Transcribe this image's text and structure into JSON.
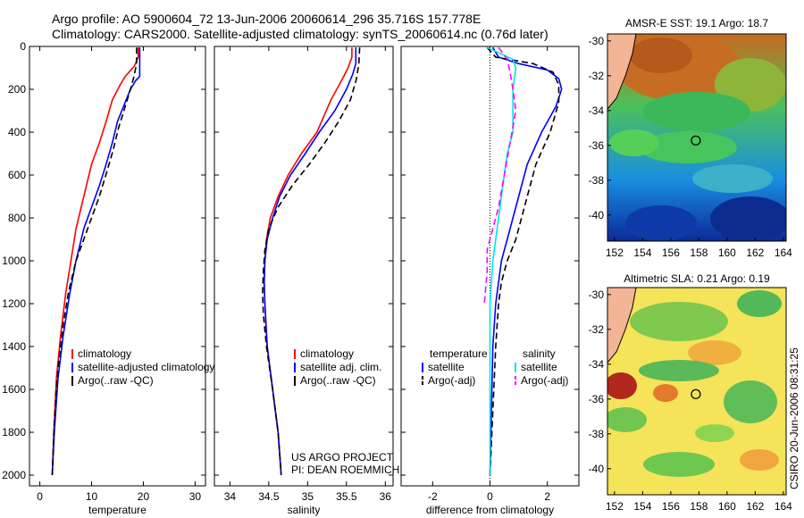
{
  "title_lines": [
    "Argo profile: AO 5900604_72 13-Jun-2006 20060614_296 35.716S 157.778E",
    "Climatology: CARS2000. Satellite-adjusted climatology: synTS_20060614.nc (0.76d later)"
  ],
  "side_label": "CSIRO 20-Jun-2006 08:31:25",
  "project_text": [
    "US ARGO PROJECT",
    "PI: DEAN ROEMMICH"
  ],
  "maps": [
    {
      "title": "AMSR-E SST: 19.1 Argo: 18.7",
      "xticks": [
        "152",
        "154",
        "156",
        "158",
        "160",
        "162",
        "164"
      ],
      "yticks": [
        "-30",
        "-32",
        "-34",
        "-36",
        "-38",
        "-40"
      ],
      "marker": {
        "lon": 157.78,
        "lat": -35.72
      }
    },
    {
      "title": "Altimetric SLA: 0.21 Argo: 0.19",
      "xticks": [
        "152",
        "154",
        "156",
        "158",
        "160",
        "162",
        "164"
      ],
      "yticks": [
        "-30",
        "-32",
        "-34",
        "-36",
        "-38",
        "-40"
      ],
      "marker": {
        "lon": 157.78,
        "lat": -35.72
      }
    }
  ],
  "chart_data": [
    {
      "type": "line",
      "xlabel": "temperature",
      "ylabel": "",
      "xlim": [
        -2,
        32
      ],
      "ylim": [
        0,
        2050
      ],
      "y_reversed": true,
      "xticks": [
        0,
        10,
        20,
        30
      ],
      "yticks": [
        0,
        200,
        400,
        600,
        800,
        1000,
        1200,
        1400,
        1600,
        1800,
        2000
      ],
      "legend": {
        "position": "lower-right",
        "entries": [
          "climatology",
          "satellite-adjusted climatology",
          "Argo(..raw -QC)"
        ]
      },
      "series": [
        {
          "name": "climatology",
          "color": "#ff0000",
          "dash": "solid",
          "points": [
            [
              19.0,
              5
            ],
            [
              19.0,
              50
            ],
            [
              18.3,
              90
            ],
            [
              16.5,
              140
            ],
            [
              15.5,
              180
            ],
            [
              14.0,
              250
            ],
            [
              12.8,
              350
            ],
            [
              11.5,
              450
            ],
            [
              10.0,
              550
            ],
            [
              9.0,
              650
            ],
            [
              8.0,
              750
            ],
            [
              7.0,
              850
            ],
            [
              6.0,
              1000
            ],
            [
              5.0,
              1150
            ],
            [
              4.0,
              1350
            ],
            [
              3.2,
              1550
            ],
            [
              2.7,
              1800
            ],
            [
              2.4,
              2000
            ]
          ]
        },
        {
          "name": "satellite-adjusted climatology",
          "color": "#0000ff",
          "dash": "solid",
          "points": [
            [
              19.3,
              5
            ],
            [
              19.3,
              140
            ],
            [
              18.5,
              160
            ],
            [
              17.5,
              200
            ],
            [
              16.5,
              260
            ],
            [
              15.0,
              350
            ],
            [
              14.0,
              450
            ],
            [
              12.8,
              550
            ],
            [
              11.5,
              650
            ],
            [
              10.0,
              750
            ],
            [
              8.5,
              850
            ],
            [
              7.0,
              1000
            ],
            [
              5.8,
              1150
            ],
            [
              4.5,
              1350
            ],
            [
              3.5,
              1550
            ],
            [
              2.8,
              1800
            ],
            [
              2.4,
              2000
            ]
          ]
        },
        {
          "name": "Argo(..raw -QC)",
          "color": "#000000",
          "dash": "dashed",
          "points": [
            [
              18.7,
              5
            ],
            [
              18.7,
              80
            ],
            [
              18.2,
              140
            ],
            [
              17.5,
              200
            ],
            [
              16.5,
              280
            ],
            [
              15.2,
              380
            ],
            [
              14.2,
              480
            ],
            [
              13.0,
              580
            ],
            [
              11.5,
              700
            ],
            [
              10.0,
              800
            ],
            [
              8.5,
              900
            ],
            [
              7.0,
              1000
            ],
            [
              5.5,
              1150
            ],
            [
              4.5,
              1300
            ],
            [
              3.5,
              1500
            ],
            [
              2.8,
              1750
            ],
            [
              2.4,
              2000
            ]
          ]
        }
      ]
    },
    {
      "type": "line",
      "xlabel": "salinity",
      "ylabel": "",
      "xlim": [
        33.8,
        36.1
      ],
      "ylim": [
        0,
        2050
      ],
      "y_reversed": true,
      "xticks": [
        34,
        34.5,
        35,
        35.5,
        36
      ],
      "legend": {
        "position": "lower-right",
        "entries": [
          "climatology",
          "satellite adj. clim.",
          "Argo(..raw -QC)"
        ]
      },
      "series": [
        {
          "name": "climatology",
          "color": "#ff0000",
          "dash": "solid",
          "points": [
            [
              35.57,
              5
            ],
            [
              35.57,
              50
            ],
            [
              35.52,
              100
            ],
            [
              35.45,
              150
            ],
            [
              35.3,
              250
            ],
            [
              35.12,
              400
            ],
            [
              34.92,
              500
            ],
            [
              34.75,
              600
            ],
            [
              34.62,
              700
            ],
            [
              34.52,
              800
            ],
            [
              34.47,
              900
            ],
            [
              34.45,
              1000
            ],
            [
              34.44,
              1100
            ],
            [
              34.45,
              1200
            ],
            [
              34.48,
              1400
            ],
            [
              34.55,
              1600
            ],
            [
              34.62,
              1800
            ],
            [
              34.66,
              2000
            ]
          ]
        },
        {
          "name": "satellite adj. clim.",
          "color": "#0000ff",
          "dash": "solid",
          "points": [
            [
              35.62,
              5
            ],
            [
              35.62,
              80
            ],
            [
              35.58,
              130
            ],
            [
              35.5,
              200
            ],
            [
              35.35,
              300
            ],
            [
              35.15,
              400
            ],
            [
              34.97,
              500
            ],
            [
              34.78,
              600
            ],
            [
              34.64,
              700
            ],
            [
              34.55,
              800
            ],
            [
              34.48,
              900
            ],
            [
              34.45,
              1000
            ],
            [
              34.44,
              1100
            ],
            [
              34.45,
              1200
            ],
            [
              34.48,
              1400
            ],
            [
              34.55,
              1600
            ],
            [
              34.62,
              1800
            ],
            [
              34.66,
              2000
            ]
          ]
        },
        {
          "name": "Argo(..raw -QC)",
          "color": "#000000",
          "dash": "dashed",
          "points": [
            [
              35.67,
              5
            ],
            [
              35.66,
              80
            ],
            [
              35.63,
              150
            ],
            [
              35.55,
              250
            ],
            [
              35.4,
              350
            ],
            [
              35.22,
              450
            ],
            [
              35.02,
              550
            ],
            [
              34.8,
              650
            ],
            [
              34.62,
              750
            ],
            [
              34.5,
              850
            ],
            [
              34.45,
              950
            ],
            [
              34.43,
              1050
            ],
            [
              34.42,
              1150
            ],
            [
              34.43,
              1250
            ],
            [
              34.47,
              1400
            ],
            [
              34.55,
              1600
            ],
            [
              34.62,
              1800
            ],
            [
              34.66,
              2000
            ]
          ]
        }
      ]
    },
    {
      "type": "line",
      "xlabel": "difference from climatology",
      "ylabel": "",
      "xlim": [
        -3.1,
        3.1
      ],
      "ylim": [
        0,
        2050
      ],
      "y_reversed": true,
      "xticks": [
        -2,
        0,
        2
      ],
      "zero_line": true,
      "legend": {
        "position": "lower-center",
        "headers": [
          "temperature",
          "salinity"
        ],
        "entries": [
          "satellite",
          "Argo(-adj)",
          "satellite",
          "Argo(-adj)"
        ]
      },
      "series": [
        {
          "name": "satellite",
          "quantity": "temperature",
          "color": "#0000ff",
          "dash": "solid",
          "points": [
            [
              0.1,
              5
            ],
            [
              0.3,
              50
            ],
            [
              1.0,
              80
            ],
            [
              2.0,
              110
            ],
            [
              2.4,
              150
            ],
            [
              2.5,
              200
            ],
            [
              2.3,
              280
            ],
            [
              1.8,
              400
            ],
            [
              1.3,
              550
            ],
            [
              1.0,
              700
            ],
            [
              0.8,
              800
            ],
            [
              0.6,
              900
            ],
            [
              0.4,
              1000
            ],
            [
              0.3,
              1100
            ],
            [
              0.2,
              1200
            ],
            [
              0.1,
              1400
            ],
            [
              0.05,
              1700
            ],
            [
              0.0,
              2000
            ]
          ]
        },
        {
          "name": "Argo(-adj)",
          "quantity": "temperature",
          "color": "#000000",
          "dash": "dashed",
          "points": [
            [
              -0.1,
              5
            ],
            [
              0.2,
              50
            ],
            [
              1.5,
              80
            ],
            [
              2.2,
              120
            ],
            [
              2.4,
              180
            ],
            [
              2.4,
              260
            ],
            [
              2.1,
              400
            ],
            [
              1.6,
              550
            ],
            [
              1.4,
              650
            ],
            [
              1.1,
              800
            ],
            [
              0.9,
              900
            ],
            [
              0.6,
              1000
            ],
            [
              0.4,
              1100
            ],
            [
              0.3,
              1200
            ],
            [
              0.2,
              1400
            ],
            [
              0.1,
              1700
            ],
            [
              0.0,
              2000
            ]
          ]
        },
        {
          "name": "satellite",
          "quantity": "salinity",
          "color": "#00e5e5",
          "dash": "solid",
          "points": [
            [
              -0.1,
              5
            ],
            [
              0.8,
              60
            ],
            [
              0.9,
              100
            ],
            [
              0.8,
              200
            ],
            [
              0.8,
              400
            ],
            [
              0.6,
              500
            ],
            [
              0.5,
              600
            ],
            [
              0.4,
              700
            ],
            [
              0.3,
              800
            ],
            [
              0.2,
              900
            ],
            [
              0.1,
              1000
            ],
            [
              0.0,
              1200
            ],
            [
              0.0,
              2000
            ]
          ]
        },
        {
          "name": "Argo(-adj)",
          "quantity": "salinity",
          "color": "#ff00ff",
          "dash": "dashed",
          "points": [
            [
              0.3,
              5
            ],
            [
              0.6,
              60
            ],
            [
              0.7,
              120
            ],
            [
              0.8,
              200
            ],
            [
              0.9,
              300
            ],
            [
              0.7,
              450
            ],
            [
              0.5,
              600
            ],
            [
              0.3,
              750
            ],
            [
              0.1,
              850
            ],
            [
              -0.1,
              950
            ],
            [
              -0.1,
              1050
            ],
            [
              -0.2,
              1200
            ]
          ]
        }
      ]
    }
  ]
}
